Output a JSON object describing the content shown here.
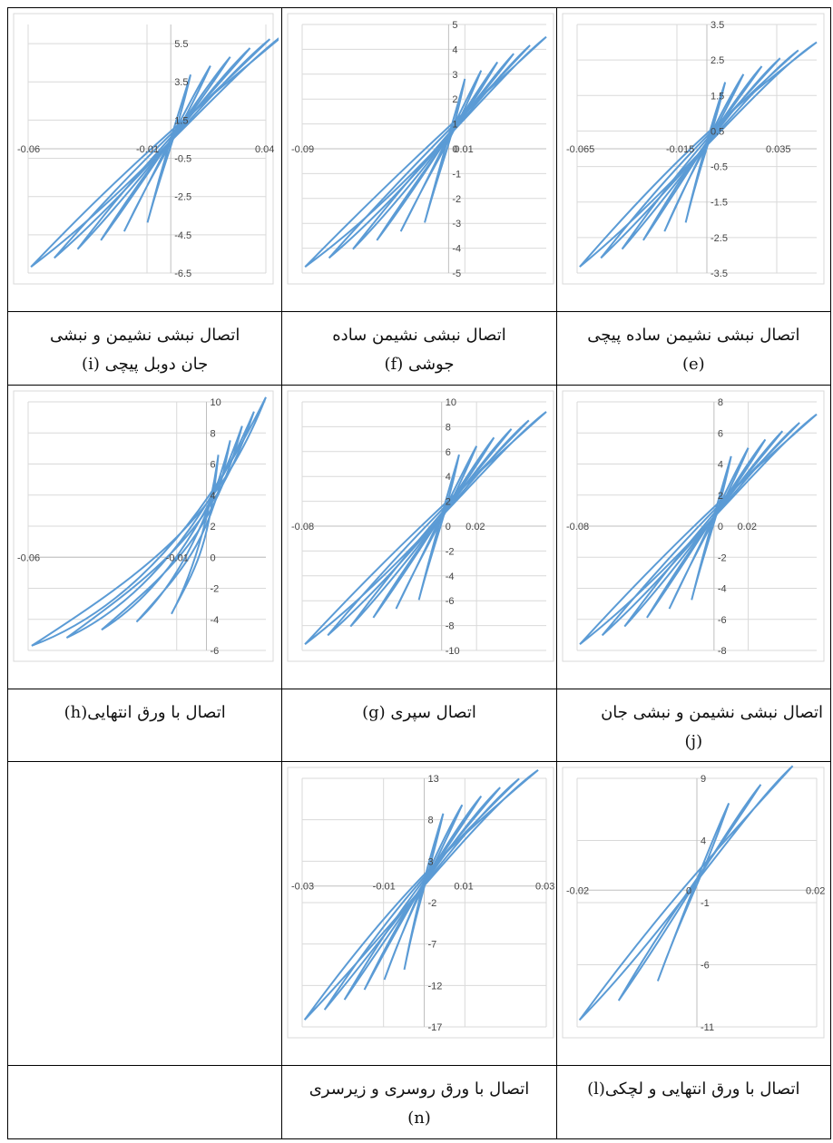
{
  "chart_data": [
    {
      "id": "i",
      "type": "line",
      "x_ticks": [
        "-0.06",
        "-0.01",
        "0.04"
      ],
      "y_ticks": [
        "5.5",
        "3.5",
        "1.5",
        "-0.5",
        "-2.5",
        "-4.5",
        "-6.5"
      ],
      "xlim": [
        -0.06,
        0.04
      ],
      "ylim": [
        -6.5,
        6.5
      ],
      "peak_x": 0.05,
      "peak_y": 6.2,
      "loops": 6
    },
    {
      "id": "f",
      "type": "line",
      "x_ticks": [
        "-0.09",
        "0.01"
      ],
      "y_ticks": [
        "5",
        "4",
        "3",
        "2",
        "1",
        "0",
        "-1",
        "-2",
        "-3",
        "-4",
        "-5"
      ],
      "xlim": [
        -0.09,
        0.06
      ],
      "ylim": [
        -5,
        5
      ],
      "peak_x": 0.06,
      "peak_y": 4.5,
      "loops": 6
    },
    {
      "id": "e",
      "type": "line",
      "x_ticks": [
        "-0.065",
        "-0.015",
        "0.035"
      ],
      "y_ticks": [
        "3.5",
        "2.5",
        "1.5",
        "0.5",
        "-0.5",
        "-1.5",
        "-2.5",
        "-3.5"
      ],
      "xlim": [
        -0.065,
        0.055
      ],
      "ylim": [
        -3.5,
        3.5
      ],
      "peak_x": 0.055,
      "peak_y": 3.0,
      "loops": 6
    },
    {
      "id": "h",
      "type": "line",
      "x_ticks": [
        "-0.06",
        "-0.01"
      ],
      "y_ticks": [
        "10",
        "8",
        "6",
        "4",
        "2",
        "0",
        "-2",
        "-4",
        "-6"
      ],
      "xlim": [
        -0.06,
        0.02
      ],
      "ylim": [
        -6,
        10
      ],
      "peak_x": 0.02,
      "peak_y": 10.3,
      "loops": 5
    },
    {
      "id": "g",
      "type": "line",
      "x_ticks": [
        "-0.08",
        "0.02"
      ],
      "y_ticks": [
        "10",
        "8",
        "6",
        "4",
        "2",
        "0",
        "-2",
        "-4",
        "-6",
        "-8",
        "-10"
      ],
      "xlim": [
        -0.08,
        0.06
      ],
      "ylim": [
        -10,
        10
      ],
      "peak_x": 0.06,
      "peak_y": 9.2,
      "loops": 6
    },
    {
      "id": "j",
      "type": "line",
      "x_ticks": [
        "-0.08",
        "0.02"
      ],
      "y_ticks": [
        "8",
        "6",
        "4",
        "2",
        "0",
        "-2",
        "-4",
        "-6",
        "-8"
      ],
      "xlim": [
        -0.08,
        0.06
      ],
      "ylim": [
        -8,
        8
      ],
      "peak_x": 0.06,
      "peak_y": 7.2,
      "loops": 6
    },
    {
      "id": "n",
      "type": "line",
      "x_ticks": [
        "-0.03",
        "-0.01",
        "0.01",
        "0.03"
      ],
      "y_ticks": [
        "13",
        "8",
        "3",
        "-2",
        "-7",
        "-12",
        "-17"
      ],
      "xlim": [
        -0.03,
        0.03
      ],
      "ylim": [
        -17,
        13
      ],
      "peak_x": 0.028,
      "peak_y": 14,
      "loops": 6
    },
    {
      "id": "l",
      "type": "line",
      "x_ticks": [
        "-0.02",
        "0",
        "0.02"
      ],
      "y_ticks": [
        "9",
        "4",
        "-1",
        "-6",
        "-11"
      ],
      "xlim": [
        -0.02,
        0.02
      ],
      "ylim": [
        -11,
        9
      ],
      "peak_x": 0.016,
      "peak_y": 10,
      "loops": 3
    }
  ],
  "captions": {
    "row1": [
      {
        "line1": "اتصال نبشی نشیمن و نبشی",
        "line2": "جان دوبل پیچی (i)"
      },
      {
        "line1": "اتصال نبشی نشیمن ساده",
        "line2": "جوشی (f)"
      },
      {
        "line1": "اتصال نبشی نشیمن ساده پیچی",
        "line2": "(e)"
      }
    ],
    "row2": [
      {
        "line1": "اتصال با ورق انتهایی(h)",
        "line2": ""
      },
      {
        "line1": "اتصال سپری (g)",
        "line2": ""
      },
      {
        "line1": "اتصال نبشی نشیمن و نبشی جان",
        "line2": "(j)"
      }
    ],
    "row3": [
      {
        "line1": "",
        "line2": ""
      },
      {
        "line1": "اتصال با ورق روسری و زیرسری",
        "line2": "(n)"
      },
      {
        "line1": "اتصال با ورق انتهایی و لچکی(l)",
        "line2": ""
      }
    ]
  },
  "colors": {
    "curve": "#5b9bd5",
    "grid": "#d9d9d9",
    "axis": "#bfbfbf",
    "frame": "#d9d9d9"
  }
}
